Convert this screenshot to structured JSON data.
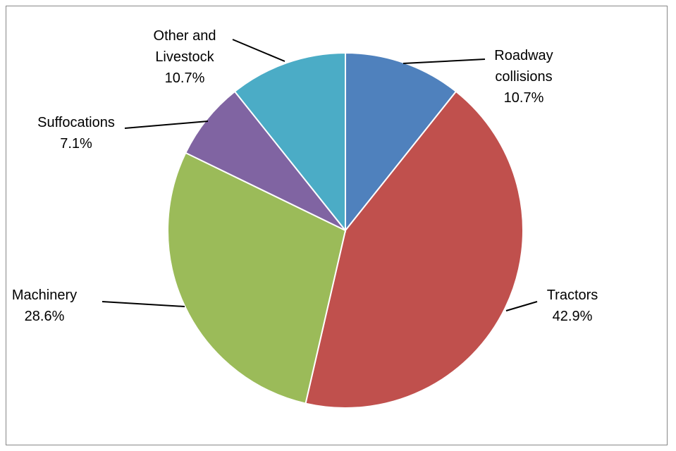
{
  "chart_data": {
    "type": "pie",
    "slices": [
      {
        "name_lines": [
          "Roadway",
          "collisions"
        ],
        "value": 10.7,
        "label": "10.7%",
        "color": "#4F81BD"
      },
      {
        "name_lines": [
          "Tractors"
        ],
        "value": 42.9,
        "label": "42.9%",
        "color": "#C0504D"
      },
      {
        "name_lines": [
          "Machinery"
        ],
        "value": 28.6,
        "label": "28.6%",
        "color": "#9BBB59"
      },
      {
        "name_lines": [
          "Suffocations"
        ],
        "value": 7.1,
        "label": "7.1%",
        "color": "#8064A2"
      },
      {
        "name_lines": [
          "Other and",
          "Livestock"
        ],
        "value": 10.7,
        "label": "10.7%",
        "color": "#4BACC6"
      }
    ],
    "start": "12 o'clock",
    "direction": "clockwise",
    "legend": "none"
  }
}
